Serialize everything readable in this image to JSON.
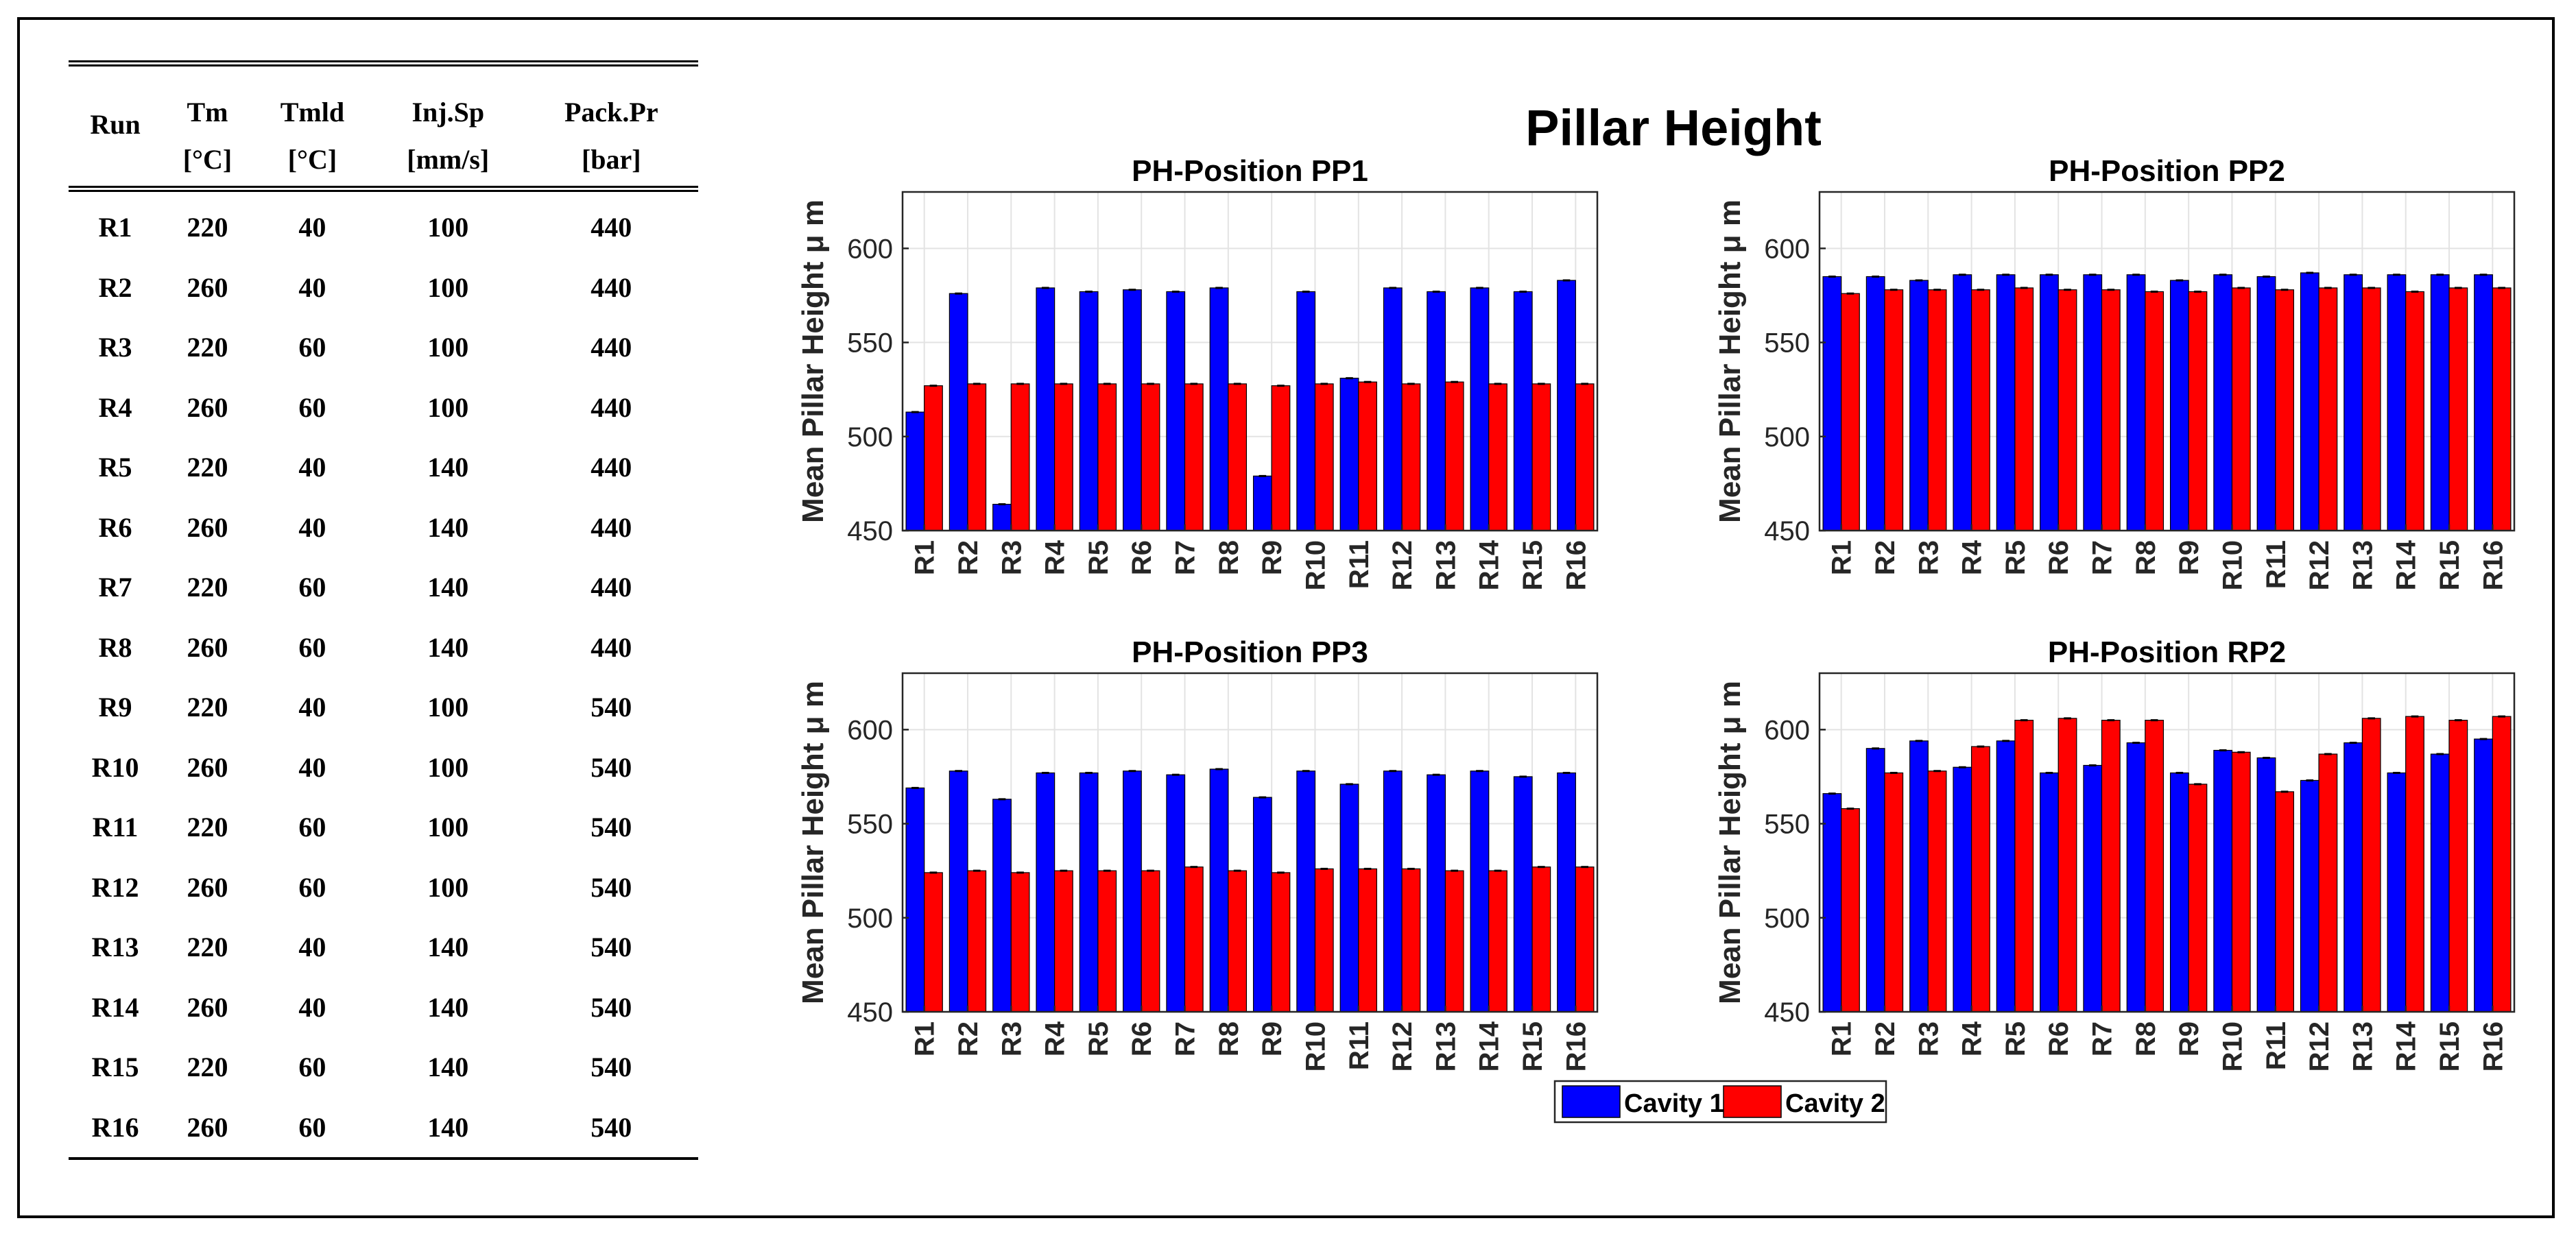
{
  "table": {
    "headers": [
      {
        "name": "Run",
        "unit": ""
      },
      {
        "name": "Tm",
        "unit": "[°C]"
      },
      {
        "name": "Tmld",
        "unit": "[°C]"
      },
      {
        "name": "Inj.Sp",
        "unit": "[mm/s]"
      },
      {
        "name": "Pack.Pr",
        "unit": "[bar]"
      }
    ],
    "rows": [
      [
        "R1",
        "220",
        "40",
        "100",
        "440"
      ],
      [
        "R2",
        "260",
        "40",
        "100",
        "440"
      ],
      [
        "R3",
        "220",
        "60",
        "100",
        "440"
      ],
      [
        "R4",
        "260",
        "60",
        "100",
        "440"
      ],
      [
        "R5",
        "220",
        "40",
        "140",
        "440"
      ],
      [
        "R6",
        "260",
        "40",
        "140",
        "440"
      ],
      [
        "R7",
        "220",
        "60",
        "140",
        "440"
      ],
      [
        "R8",
        "260",
        "60",
        "140",
        "440"
      ],
      [
        "R9",
        "220",
        "40",
        "100",
        "540"
      ],
      [
        "R10",
        "260",
        "40",
        "100",
        "540"
      ],
      [
        "R11",
        "220",
        "60",
        "100",
        "540"
      ],
      [
        "R12",
        "260",
        "60",
        "100",
        "540"
      ],
      [
        "R13",
        "220",
        "40",
        "140",
        "540"
      ],
      [
        "R14",
        "260",
        "40",
        "140",
        "540"
      ],
      [
        "R15",
        "220",
        "60",
        "140",
        "540"
      ],
      [
        "R16",
        "260",
        "60",
        "140",
        "540"
      ]
    ]
  },
  "figure": {
    "title": "Pillar Height",
    "colors": {
      "cavity1": "#0000ff",
      "cavity2": "#ff0000"
    },
    "legend": {
      "placement": "bottom-center",
      "entries": [
        "Cavity 1",
        "Cavity 2"
      ]
    }
  },
  "chart_data": [
    {
      "type": "bar",
      "title": "PH-Position PP1",
      "ylabel": "Mean Pillar Height μ m",
      "xlabel": "",
      "ylim": [
        450,
        630
      ],
      "yticks": [
        450,
        500,
        550,
        600
      ],
      "grid": true,
      "categories": [
        "R1",
        "R2",
        "R3",
        "R4",
        "R5",
        "R6",
        "R7",
        "R8",
        "R9",
        "R10",
        "R11",
        "R12",
        "R13",
        "R14",
        "R15",
        "R16"
      ],
      "series": [
        {
          "name": "Cavity 1",
          "values": [
            513,
            576,
            464,
            579,
            577,
            578,
            577,
            579,
            479,
            577,
            531,
            579,
            577,
            579,
            577,
            583
          ]
        },
        {
          "name": "Cavity 2",
          "values": [
            527,
            528,
            528,
            528,
            528,
            528,
            528,
            528,
            527,
            528,
            529,
            528,
            529,
            528,
            528,
            528
          ]
        }
      ]
    },
    {
      "type": "bar",
      "title": "PH-Position PP2",
      "ylabel": "Mean Pillar Height μ m",
      "xlabel": "",
      "ylim": [
        450,
        630
      ],
      "yticks": [
        450,
        500,
        550,
        600
      ],
      "grid": true,
      "categories": [
        "R1",
        "R2",
        "R3",
        "R4",
        "R5",
        "R6",
        "R7",
        "R8",
        "R9",
        "R10",
        "R11",
        "R12",
        "R13",
        "R14",
        "R15",
        "R16"
      ],
      "series": [
        {
          "name": "Cavity 1",
          "values": [
            585,
            585,
            583,
            586,
            586,
            586,
            586,
            586,
            583,
            586,
            585,
            587,
            586,
            586,
            586,
            586
          ]
        },
        {
          "name": "Cavity 2",
          "values": [
            576,
            578,
            578,
            578,
            579,
            578,
            578,
            577,
            577,
            579,
            578,
            579,
            579,
            577,
            579,
            579
          ]
        }
      ]
    },
    {
      "type": "bar",
      "title": "PH-Position PP3",
      "ylabel": "Mean Pillar Height μ m",
      "xlabel": "",
      "ylim": [
        450,
        630
      ],
      "yticks": [
        450,
        500,
        550,
        600
      ],
      "grid": true,
      "categories": [
        "R1",
        "R2",
        "R3",
        "R4",
        "R5",
        "R6",
        "R7",
        "R8",
        "R9",
        "R10",
        "R11",
        "R12",
        "R13",
        "R14",
        "R15",
        "R16"
      ],
      "series": [
        {
          "name": "Cavity 1",
          "values": [
            569,
            578,
            563,
            577,
            577,
            578,
            576,
            579,
            564,
            578,
            571,
            578,
            576,
            578,
            575,
            577
          ]
        },
        {
          "name": "Cavity 2",
          "values": [
            524,
            525,
            524,
            525,
            525,
            525,
            527,
            525,
            524,
            526,
            526,
            526,
            525,
            525,
            527,
            527
          ]
        }
      ]
    },
    {
      "type": "bar",
      "title": "PH-Position RP2",
      "ylabel": "Mean Pillar Height μ m",
      "xlabel": "",
      "ylim": [
        450,
        630
      ],
      "yticks": [
        450,
        500,
        550,
        600
      ],
      "grid": true,
      "categories": [
        "R1",
        "R2",
        "R3",
        "R4",
        "R5",
        "R6",
        "R7",
        "R8",
        "R9",
        "R10",
        "R11",
        "R12",
        "R13",
        "R14",
        "R15",
        "R16"
      ],
      "series": [
        {
          "name": "Cavity 1",
          "values": [
            566,
            590,
            594,
            580,
            594,
            577,
            581,
            593,
            577,
            589,
            585,
            573,
            593,
            577,
            587,
            595
          ]
        },
        {
          "name": "Cavity 2",
          "values": [
            558,
            577,
            578,
            591,
            605,
            606,
            605,
            605,
            571,
            588,
            567,
            587,
            606,
            607,
            605,
            607
          ]
        }
      ]
    }
  ]
}
